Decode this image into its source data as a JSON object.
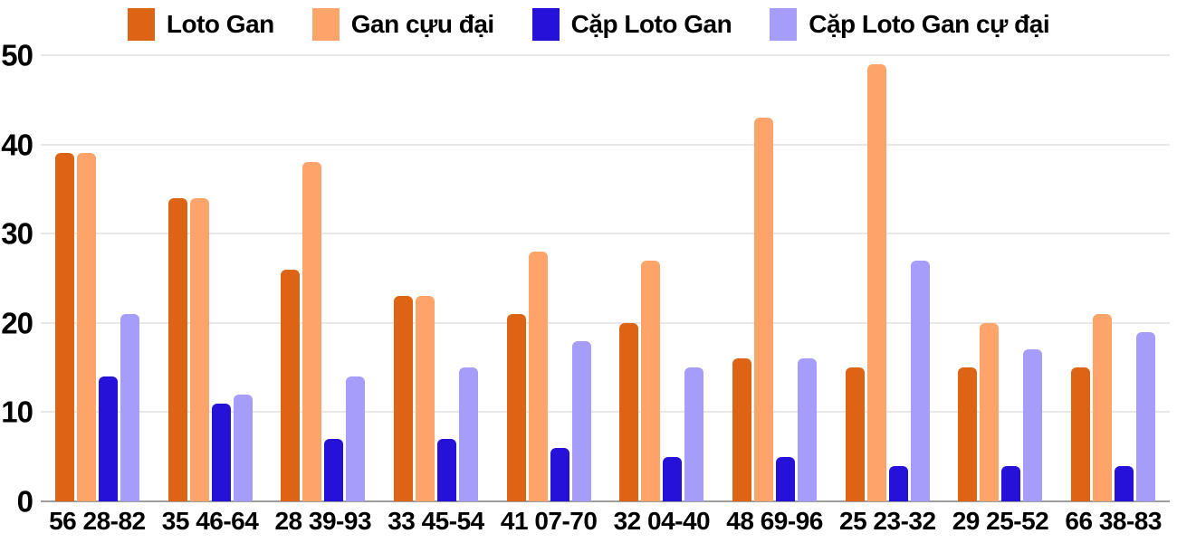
{
  "chart_data": {
    "type": "bar",
    "categories": [
      "56 28-82",
      "35 46-64",
      "28 39-93",
      "33 45-54",
      "41 07-70",
      "32 04-40",
      "48 69-96",
      "25 23-32",
      "29 25-52",
      "66 38-83"
    ],
    "series": [
      {
        "name": "Loto Gan",
        "color": "#dd6414",
        "values": [
          39,
          34,
          26,
          23,
          21,
          20,
          16,
          15,
          15,
          15
        ]
      },
      {
        "name": "Gan cựu đại",
        "color": "#fca469",
        "values": [
          39,
          34,
          38,
          23,
          28,
          27,
          43,
          49,
          20,
          21
        ]
      },
      {
        "name": "Cặp Loto Gan",
        "color": "#2611d8",
        "values": [
          14,
          11,
          7,
          7,
          6,
          5,
          5,
          4,
          4,
          4
        ]
      },
      {
        "name": "Cặp Loto Gan cự đại",
        "color": "#a69cfa",
        "values": [
          21,
          12,
          14,
          15,
          18,
          15,
          16,
          27,
          17,
          19
        ]
      }
    ],
    "title": "",
    "xlabel": "",
    "ylabel": "",
    "ylim": [
      0,
      50
    ],
    "yticks": [
      0,
      10,
      20,
      30,
      40,
      50
    ],
    "grid": true,
    "legend_position": "top"
  },
  "colors": {
    "gridline": "#e8e8e8",
    "baseline": "#9e9e9e",
    "text": "#000000",
    "background": "#ffffff"
  }
}
